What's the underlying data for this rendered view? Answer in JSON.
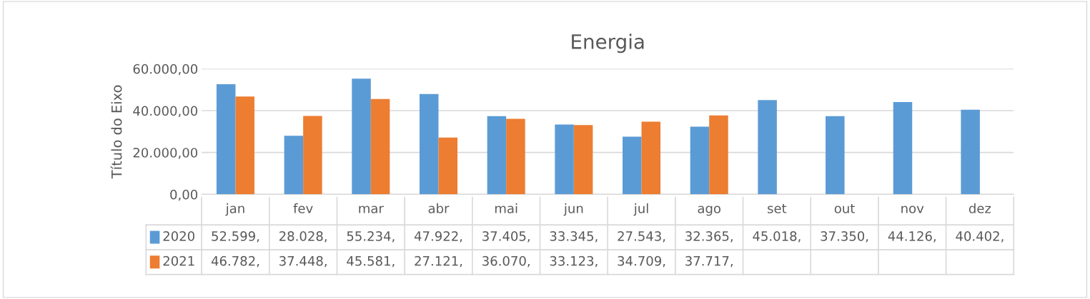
{
  "chart_data": {
    "type": "bar",
    "title": "Energia",
    "ylabel": "Título do Eixo",
    "categories": [
      "jan",
      "fev",
      "mar",
      "abr",
      "mai",
      "jun",
      "jul",
      "ago",
      "set",
      "out",
      "nov",
      "dez"
    ],
    "series": [
      {
        "name": "2020",
        "color": "#5b9bd5",
        "values": [
          52599,
          28028,
          55234,
          47922,
          37405,
          33345,
          27543,
          32365,
          45018,
          37350,
          44126,
          40402
        ],
        "value_labels": [
          "52.599,",
          "28.028,",
          "55.234,",
          "47.922,",
          "37.405,",
          "33.345,",
          "27.543,",
          "32.365,",
          "45.018,",
          "37.350,",
          "44.126,",
          "40.402,"
        ]
      },
      {
        "name": "2021",
        "color": "#ed7d31",
        "values": [
          46782,
          37448,
          45581,
          27121,
          36070,
          33123,
          34709,
          37717,
          null,
          null,
          null,
          null
        ],
        "value_labels": [
          "46.782,",
          "37.448,",
          "45.581,",
          "27.121,",
          "36.070,",
          "33.123,",
          "34.709,",
          "37.717,",
          null,
          null,
          null,
          null
        ]
      }
    ],
    "ylim": [
      0,
      60000
    ],
    "yticks": [
      {
        "value": 0,
        "label": "0,00"
      },
      {
        "value": 20000,
        "label": "20.000,00"
      },
      {
        "value": 40000,
        "label": "40.000,00"
      },
      {
        "value": 60000,
        "label": "60.000,00"
      }
    ],
    "grid": "y",
    "legend": "bottom left"
  }
}
